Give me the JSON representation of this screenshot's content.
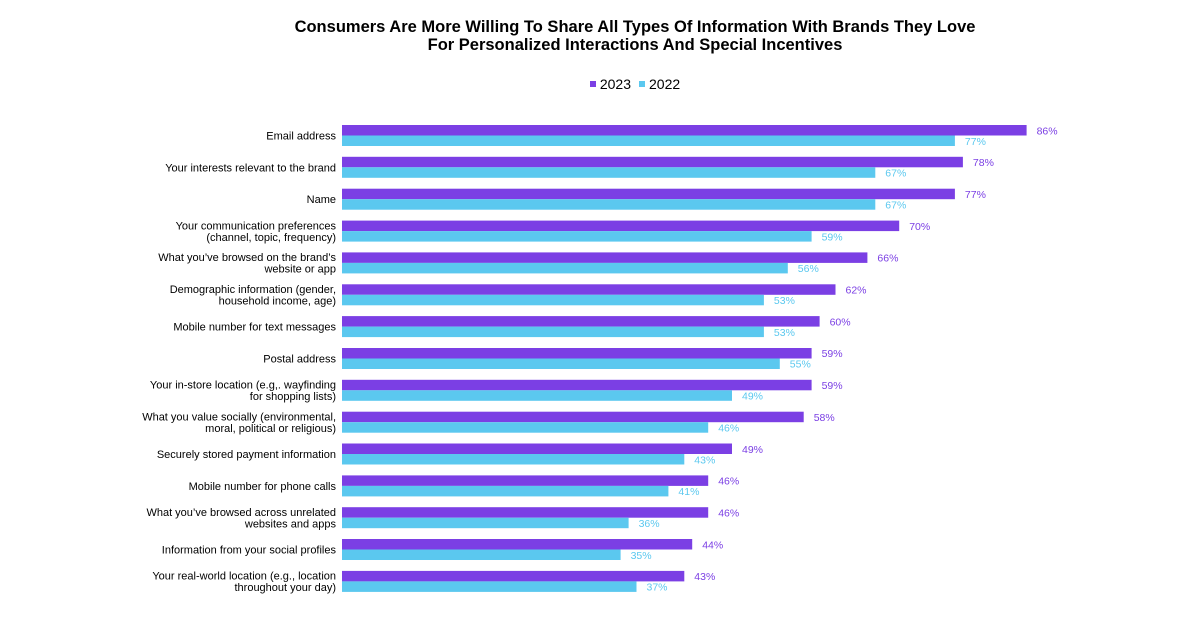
{
  "chart_data": {
    "type": "bar",
    "orientation": "horizontal",
    "title_lines": [
      "Consumers Are More Willing To Share All Types Of Information With Brands They Love",
      "For Personalized Interactions And Special Incentives"
    ],
    "legend": {
      "position": "top-center"
    },
    "grid": false,
    "xlim": [
      0,
      100
    ],
    "value_suffix": "%",
    "categories": [
      [
        "Email address"
      ],
      [
        "Your interests relevant to the brand"
      ],
      [
        "Name"
      ],
      [
        "Your communication preferences",
        "(channel, topic, frequency)"
      ],
      [
        "What you’ve browsed on the brand’s",
        "website or app"
      ],
      [
        "Demographic information (gender,",
        "household income, age)"
      ],
      [
        "Mobile number for text messages"
      ],
      [
        "Postal address"
      ],
      [
        "Your in-store location (e.g,. wayfinding",
        "for shopping lists)"
      ],
      [
        "What you value socially (environmental,",
        "moral, political or religious)"
      ],
      [
        "Securely stored payment information"
      ],
      [
        "Mobile number for phone calls"
      ],
      [
        "What you’ve browsed across unrelated",
        "websites and apps"
      ],
      [
        "Information from your social profiles"
      ],
      [
        "Your real-world location (e.g., location",
        "throughout your day)"
      ]
    ],
    "series": [
      {
        "name": "2023",
        "color": "#7b3fe4",
        "values": [
          86,
          78,
          77,
          70,
          66,
          62,
          60,
          59,
          59,
          58,
          49,
          46,
          46,
          44,
          43
        ]
      },
      {
        "name": "2022",
        "color": "#5bc8ef",
        "values": [
          77,
          67,
          67,
          59,
          56,
          53,
          53,
          55,
          49,
          46,
          43,
          41,
          36,
          35,
          37
        ]
      }
    ]
  }
}
